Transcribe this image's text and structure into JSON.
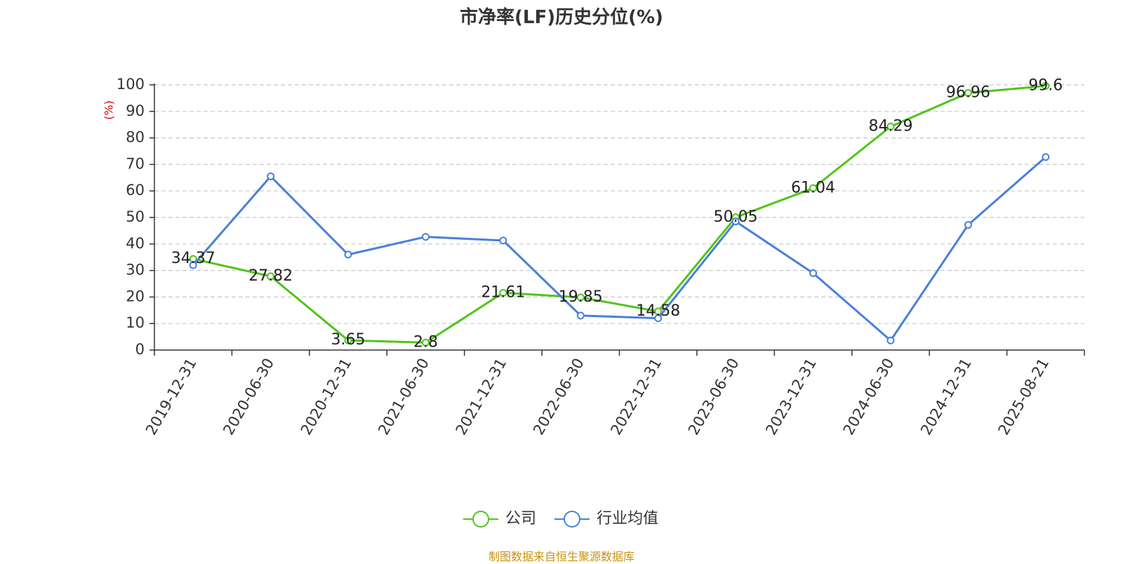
{
  "chart_data": {
    "type": "line",
    "title": "市净率(LF)历史分位(%)",
    "ylabel": "(%)",
    "xlabel": "",
    "ylim": [
      0,
      100
    ],
    "yticks": [
      0,
      10,
      20,
      30,
      40,
      50,
      60,
      70,
      80,
      90,
      100
    ],
    "categories": [
      "2019-12-31",
      "2020-06-30",
      "2020-12-31",
      "2021-06-30",
      "2021-12-31",
      "2022-06-30",
      "2022-12-31",
      "2023-06-30",
      "2023-12-31",
      "2024-06-30",
      "2024-12-31",
      "2025-08-21"
    ],
    "grid": true,
    "legend_position": "bottom",
    "series": [
      {
        "name": "公司",
        "color": "#52c41a",
        "values": [
          34.37,
          27.82,
          3.65,
          2.8,
          21.61,
          19.85,
          14.58,
          50.05,
          61.04,
          84.29,
          96.96,
          99.6
        ],
        "value_labels": [
          "34.37",
          "27.82",
          "3.65",
          "2.8",
          "21.61",
          "19.85",
          "14.58",
          "50.05",
          "61.04",
          "84.29",
          "96.96",
          "99.6"
        ],
        "show_labels": true
      },
      {
        "name": "行业均值",
        "color": "#4a7fdc",
        "values": [
          32,
          65.5,
          36,
          42.7,
          41.3,
          13,
          12,
          48.5,
          29,
          3.6,
          47.2,
          72.8
        ],
        "show_labels": false
      }
    ],
    "source": "制图数据来自恒生聚源数据库"
  }
}
